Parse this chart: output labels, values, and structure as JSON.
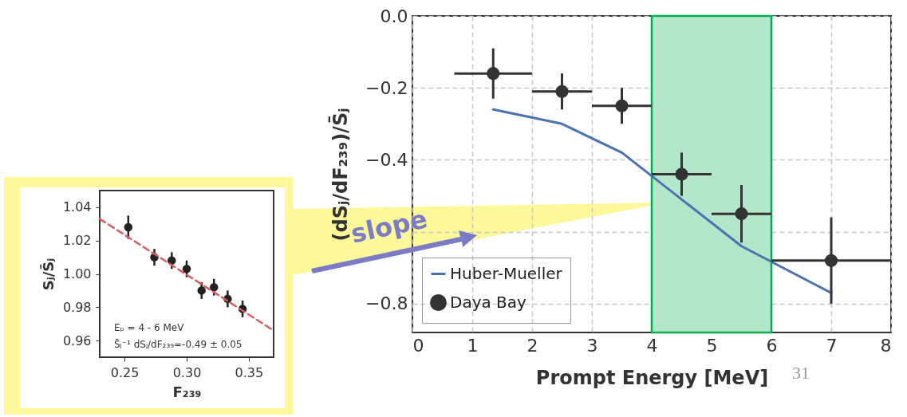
{
  "chart_data": [
    {
      "type": "scatter",
      "xlabel": "Prompt Energy [MeV]",
      "ylabel": "(dSⱼ/dF₂₃₉)/S̄ⱼ",
      "xlim": [
        0,
        8
      ],
      "ylim": [
        -0.88,
        0
      ],
      "xticks": [
        0,
        1,
        2,
        3,
        4,
        5,
        6,
        7,
        8
      ],
      "yticks": [
        {
          "value": -0.8,
          "label": "−0.8"
        },
        {
          "value": -0.6,
          "label": null
        },
        {
          "value": -0.4,
          "label": "−0.4"
        },
        {
          "value": -0.2,
          "label": "−0.2"
        },
        {
          "value": 0,
          "label": "0.0"
        }
      ],
      "grid": true,
      "legend": "bottom left",
      "bands": [
        {
          "axis": "x",
          "from": 4,
          "to": 6,
          "color": "#b3e6ca"
        }
      ],
      "annotations": [
        "31"
      ],
      "series": [
        {
          "name": "Huber-Mueller",
          "type": "line",
          "color": "#4c72b0",
          "x": [
            1.35,
            2.5,
            3.5,
            4.5,
            5.5,
            7
          ],
          "values": [
            -0.26,
            -0.3,
            -0.38,
            -0.51,
            -0.64,
            -0.77
          ]
        },
        {
          "name": "Daya Bay",
          "marker": "circle",
          "color": "#333333",
          "x": [
            1.35,
            2.5,
            3.5,
            4.5,
            5.5,
            7
          ],
          "values": [
            -0.16,
            -0.21,
            -0.25,
            -0.44,
            -0.55,
            -0.68
          ],
          "errors": [
            0.07,
            0.05,
            0.05,
            0.06,
            0.08,
            0.12
          ],
          "xerrors": [
            [
              0.7,
              2
            ],
            [
              2,
              3
            ],
            [
              3,
              4
            ],
            [
              4,
              5
            ],
            [
              5,
              6
            ],
            [
              6,
              8
            ]
          ]
        }
      ]
    },
    {
      "type": "scatter",
      "xlabel": "F₂₃₉",
      "ylabel": "Sⱼ/S̄ⱼ",
      "xlim": [
        0.23,
        0.37
      ],
      "ylim": [
        0.95,
        1.05
      ],
      "xticks": [
        0.25,
        {
          "value": 0.3,
          "label": "0.30"
        },
        0.35
      ],
      "yticks": [
        0.96,
        0.98,
        {
          "value": 1,
          "label": "1.00"
        },
        1.02,
        1.04
      ],
      "annotations": [
        "Eₚ = 4 - 6 MeV",
        "S̄ⱼ⁻¹ dSⱼ/dF₂₃₉=-0.49 ± 0.05",
        "slope"
      ],
      "series": [
        {
          "marker": "circle",
          "color": "#222222",
          "x": [
            0.253,
            0.274,
            0.288,
            0.3,
            0.312,
            0.322,
            0.333,
            0.345
          ],
          "values": [
            1.028,
            1.01,
            1.008,
            1.003,
            0.99,
            0.992,
            0.985,
            0.979
          ],
          "errors": [
            0.007,
            0.005,
            0.005,
            0.005,
            0.005,
            0.005,
            0.005,
            0.005
          ]
        },
        {
          "type": "line",
          "color": "#d65f5f",
          "line_style": "dashed",
          "x": [
            0.23,
            0.37
          ],
          "values": [
            1.033,
            0.966
          ]
        }
      ]
    }
  ]
}
